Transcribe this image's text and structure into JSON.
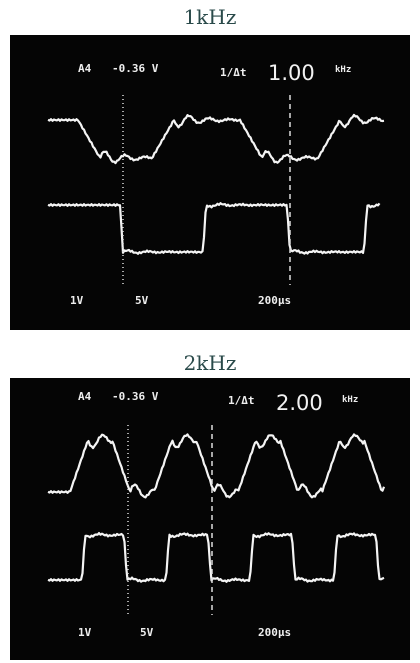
{
  "panels": [
    {
      "caption": "1kHz",
      "channel": "A4",
      "offset": "-0.36 V",
      "cursor_symbol": "1/Δt",
      "readout": "1.00",
      "readout_unit": "kHz",
      "ch1_scale": "1V",
      "ch2_scale": "5V",
      "timebase": "200µs"
    },
    {
      "caption": "2kHz",
      "channel": "A4",
      "offset": "-0.36 V",
      "cursor_symbol": "1/Δt",
      "readout": "2.00",
      "readout_unit": "kHz",
      "ch1_scale": "1V",
      "ch2_scale": "5V",
      "timebase": "200µs"
    }
  ]
}
